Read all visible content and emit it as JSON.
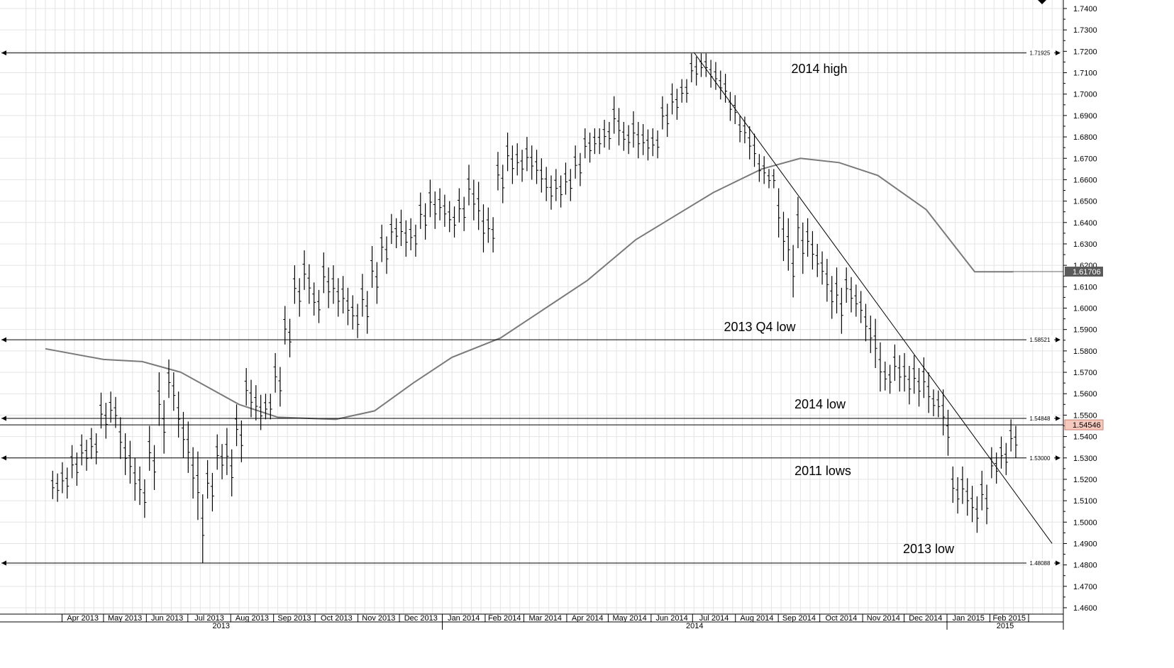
{
  "chart_data": {
    "type": "bar",
    "subtype": "ohlc-weekly",
    "ylim": [
      1.455,
      1.74
    ],
    "y_ticks": [
      1.74,
      1.73,
      1.72,
      1.71,
      1.7,
      1.69,
      1.68,
      1.67,
      1.66,
      1.65,
      1.64,
      1.63,
      1.62,
      1.61,
      1.6,
      1.59,
      1.58,
      1.57,
      1.56,
      1.55,
      1.54,
      1.53,
      1.52,
      1.51,
      1.5,
      1.49,
      1.48,
      1.47,
      1.46
    ],
    "y_tick_labels": [
      "1.7400",
      "1.7300",
      "1.7200",
      "1.7100",
      "1.7000",
      "1.6900",
      "1.6800",
      "1.6700",
      "1.6600",
      "1.6500",
      "1.6400",
      "1.6300",
      "1.6200",
      "1.6100",
      "1.6000",
      "1.5900",
      "1.5800",
      "1.5700",
      "1.5600",
      "1.5500",
      "1.5400",
      "1.5300",
      "1.5200",
      "1.5100",
      "1.5000",
      "1.4900",
      "1.4800",
      "1.4700",
      "1.4600"
    ],
    "x_months": [
      "Apr 2013",
      "May 2013",
      "Jun 2013",
      "Jul 2013",
      "Aug 2013",
      "Sep 2013",
      "Oct 2013",
      "Nov 2013",
      "Dec 2013",
      "Jan 2014",
      "Feb 2014",
      "Mar 2014",
      "Apr 2014",
      "May 2014",
      "Jun 2014",
      "Jul 2014",
      "Aug 2014",
      "Sep 2014",
      "Oct 2014",
      "Nov 2014",
      "Dec 2014",
      "Jan 2015",
      "Feb 2015"
    ],
    "x_years": [
      "2013",
      "2014",
      "2015"
    ],
    "horizontal_levels": [
      {
        "value": 1.71925,
        "label": "1.71925"
      },
      {
        "value": 1.58521,
        "label": "1.58521"
      },
      {
        "value": 1.54848,
        "label": "1.54848"
      },
      {
        "value": 1.53,
        "label": "1.53000"
      },
      {
        "value": 1.48088,
        "label": "1.48088"
      }
    ],
    "annotations": [
      "2014 high",
      "2013 Q4 low",
      "2014 low",
      "2011 lows",
      "2013 low"
    ],
    "last_price": {
      "value": 1.54546,
      "label": "1.54546",
      "color": "#f6c9bf"
    },
    "moving_average": {
      "last_value": 1.61706,
      "label": "1.61706",
      "color": "#7a7a7a",
      "badge_color": "#5a5a5a",
      "points": [
        [
          "2013-03-20",
          1.581
        ],
        [
          "2013-05-01",
          1.576
        ],
        [
          "2013-05-29",
          1.575
        ],
        [
          "2013-06-26",
          1.57
        ],
        [
          "2013-08-07",
          1.555
        ],
        [
          "2013-09-04",
          1.549
        ],
        [
          "2013-10-16",
          1.548
        ],
        [
          "2013-11-13",
          1.552
        ],
        [
          "2013-12-11",
          1.565
        ],
        [
          "2014-01-08",
          1.577
        ],
        [
          "2014-02-12",
          1.586
        ],
        [
          "2014-03-19",
          1.601
        ],
        [
          "2014-04-16",
          1.613
        ],
        [
          "2014-05-21",
          1.632
        ],
        [
          "2014-06-18",
          1.643
        ],
        [
          "2014-07-16",
          1.654
        ],
        [
          "2014-08-20",
          1.665
        ],
        [
          "2014-09-17",
          1.67
        ],
        [
          "2014-10-15",
          1.668
        ],
        [
          "2014-11-12",
          1.662
        ],
        [
          "2014-12-17",
          1.646
        ],
        [
          "2015-01-21",
          1.617
        ],
        [
          "2015-02-18",
          1.617
        ]
      ]
    },
    "trendline": {
      "from": [
        "2014-07-02",
        1.7195
      ],
      "to": [
        "2015-03-18",
        1.49
      ]
    },
    "weekly_bars": [
      [
        "2013-03-27",
        1.524,
        1.5095
      ],
      [
        "2013-04-03",
        1.528,
        1.511
      ],
      [
        "2013-04-10",
        1.536,
        1.517
      ],
      [
        "2013-04-17",
        1.541,
        1.524
      ],
      [
        "2013-04-24",
        1.544,
        1.527
      ],
      [
        "2013-05-01",
        1.5605,
        1.539
      ],
      [
        "2013-05-08",
        1.561,
        1.544
      ],
      [
        "2013-05-15",
        1.549,
        1.522
      ],
      [
        "2013-05-22",
        1.538,
        1.51
      ],
      [
        "2013-05-29",
        1.526,
        1.502
      ],
      [
        "2013-06-05",
        1.545,
        1.515
      ],
      [
        "2013-06-12",
        1.57,
        1.532
      ],
      [
        "2013-06-19",
        1.576,
        1.552
      ],
      [
        "2013-06-26",
        1.561,
        1.53
      ],
      [
        "2013-07-03",
        1.547,
        1.511
      ],
      [
        "2013-07-10",
        1.533,
        1.481
      ],
      [
        "2013-07-17",
        1.529,
        1.505
      ],
      [
        "2013-07-24",
        1.541,
        1.52
      ],
      [
        "2013-07-31",
        1.544,
        1.512
      ],
      [
        "2013-08-07",
        1.555,
        1.528
      ],
      [
        "2013-08-14",
        1.572,
        1.549
      ],
      [
        "2013-08-21",
        1.564,
        1.543
      ],
      [
        "2013-08-28",
        1.56,
        1.548
      ],
      [
        "2013-09-04",
        1.579,
        1.554
      ],
      [
        "2013-09-11",
        1.601,
        1.577
      ],
      [
        "2013-09-18",
        1.62,
        1.596
      ],
      [
        "2013-09-25",
        1.627,
        1.602
      ],
      [
        "2013-10-02",
        1.612,
        1.593
      ],
      [
        "2013-10-09",
        1.626,
        1.6
      ],
      [
        "2013-10-16",
        1.62,
        1.596
      ],
      [
        "2013-10-23",
        1.615,
        1.592
      ],
      [
        "2013-10-30",
        1.606,
        1.586
      ],
      [
        "2013-11-06",
        1.616,
        1.588
      ],
      [
        "2013-11-13",
        1.629,
        1.602
      ],
      [
        "2013-11-20",
        1.639,
        1.616
      ],
      [
        "2013-11-27",
        1.644,
        1.628
      ],
      [
        "2013-12-04",
        1.646,
        1.624
      ],
      [
        "2013-12-11",
        1.642,
        1.624
      ],
      [
        "2013-12-18",
        1.654,
        1.632
      ],
      [
        "2013-12-25",
        1.66,
        1.637
      ],
      [
        "2014-01-01",
        1.656,
        1.638
      ],
      [
        "2014-01-08",
        1.65,
        1.633
      ],
      [
        "2014-01-15",
        1.656,
        1.636
      ],
      [
        "2014-01-22",
        1.667,
        1.641
      ],
      [
        "2014-01-29",
        1.659,
        1.626
      ],
      [
        "2014-02-05",
        1.647,
        1.626
      ],
      [
        "2014-02-12",
        1.673,
        1.649
      ],
      [
        "2014-02-19",
        1.682,
        1.658
      ],
      [
        "2014-02-26",
        1.677,
        1.659
      ],
      [
        "2014-03-05",
        1.68,
        1.66
      ],
      [
        "2014-03-12",
        1.674,
        1.654
      ],
      [
        "2014-03-19",
        1.666,
        1.646
      ],
      [
        "2014-03-26",
        1.665,
        1.647
      ],
      [
        "2014-04-02",
        1.668,
        1.65
      ],
      [
        "2014-04-09",
        1.676,
        1.657
      ],
      [
        "2014-04-16",
        1.684,
        1.668
      ],
      [
        "2014-04-23",
        1.684,
        1.672
      ],
      [
        "2014-04-30",
        1.688,
        1.674
      ],
      [
        "2014-05-07",
        1.699,
        1.676
      ],
      [
        "2014-05-14",
        1.687,
        1.672
      ],
      [
        "2014-05-21",
        1.692,
        1.67
      ],
      [
        "2014-05-28",
        1.686,
        1.669
      ],
      [
        "2014-06-04",
        1.684,
        1.67
      ],
      [
        "2014-06-11",
        1.699,
        1.68
      ],
      [
        "2014-06-18",
        1.705,
        1.688
      ],
      [
        "2014-06-25",
        1.707,
        1.696
      ],
      [
        "2014-07-02",
        1.719,
        1.704
      ],
      [
        "2014-07-09",
        1.719,
        1.708
      ],
      [
        "2014-07-16",
        1.716,
        1.702
      ],
      [
        "2014-07-23",
        1.711,
        1.696
      ],
      [
        "2014-07-30",
        1.701,
        1.686
      ],
      [
        "2014-08-06",
        1.69,
        1.677
      ],
      [
        "2014-08-13",
        1.685,
        1.666
      ],
      [
        "2014-08-20",
        1.672,
        1.658
      ],
      [
        "2014-08-27",
        1.665,
        1.656
      ],
      [
        "2014-09-03",
        1.656,
        1.622
      ],
      [
        "2014-09-10",
        1.642,
        1.605
      ],
      [
        "2014-09-17",
        1.652,
        1.616
      ],
      [
        "2014-09-24",
        1.642,
        1.618
      ],
      [
        "2014-10-01",
        1.63,
        1.611
      ],
      [
        "2014-10-08",
        1.623,
        1.595
      ],
      [
        "2014-10-15",
        1.619,
        1.588
      ],
      [
        "2014-10-22",
        1.619,
        1.598
      ],
      [
        "2014-10-29",
        1.611,
        1.593
      ],
      [
        "2014-11-05",
        1.602,
        1.579
      ],
      [
        "2014-11-12",
        1.595,
        1.561
      ],
      [
        "2014-11-19",
        1.575,
        1.56
      ],
      [
        "2014-11-26",
        1.583,
        1.561
      ],
      [
        "2014-12-03",
        1.579,
        1.555
      ],
      [
        "2014-12-10",
        1.578,
        1.554
      ],
      [
        "2014-12-17",
        1.577,
        1.551
      ],
      [
        "2014-12-24",
        1.562,
        1.549
      ],
      [
        "2014-12-31",
        1.562,
        1.531
      ],
      [
        "2015-01-07",
        1.526,
        1.504
      ],
      [
        "2015-01-14",
        1.526,
        1.503
      ],
      [
        "2015-01-21",
        1.517,
        1.495
      ],
      [
        "2015-01-28",
        1.524,
        1.499
      ],
      [
        "2015-02-04",
        1.535,
        1.518
      ],
      [
        "2015-02-11",
        1.54,
        1.522
      ],
      [
        "2015-02-18",
        1.548,
        1.53
      ]
    ]
  }
}
